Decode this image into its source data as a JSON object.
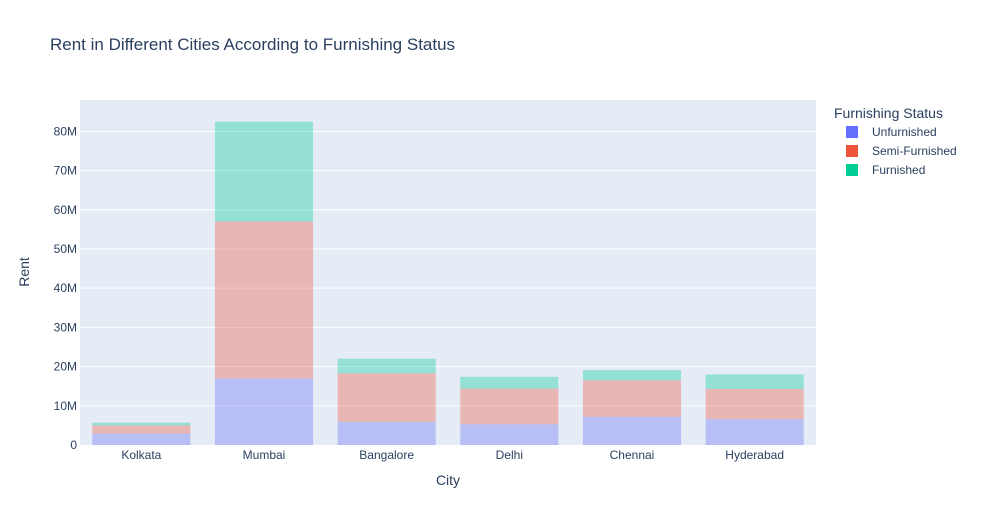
{
  "chart_data": {
    "type": "bar",
    "mode": "stack",
    "title": "Rent in Different Cities According to Furnishing Status",
    "xlabel": "City",
    "ylabel": "Rent",
    "categories": [
      "Kolkata",
      "Mumbai",
      "Bangalore",
      "Delhi",
      "Chennai",
      "Hyderabad"
    ],
    "ylim": [
      0,
      88000000
    ],
    "yticks": [
      0,
      10000000,
      20000000,
      30000000,
      40000000,
      50000000,
      60000000,
      70000000,
      80000000
    ],
    "ytick_labels": [
      "0",
      "10M",
      "20M",
      "30M",
      "40M",
      "50M",
      "60M",
      "70M",
      "80M"
    ],
    "legend": {
      "title": "Furnishing Status",
      "placement": "right"
    },
    "series": [
      {
        "name": "Unfurnished",
        "color": "#636efa",
        "values": [
          2900000,
          17000000,
          5900000,
          5300000,
          7200000,
          6600000
        ]
      },
      {
        "name": "Semi-Furnished",
        "color": "#EF553B",
        "values": [
          2100000,
          40000000,
          12400000,
          9100000,
          9300000,
          7700000
        ]
      },
      {
        "name": "Furnished",
        "color": "#00cc96",
        "values": [
          700000,
          25500000,
          3700000,
          3000000,
          2600000,
          3700000
        ]
      }
    ],
    "grid": true,
    "background": "#e5ecf6"
  }
}
